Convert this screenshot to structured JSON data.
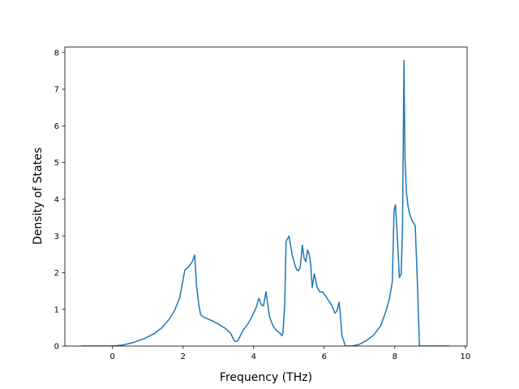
{
  "chart_data": {
    "type": "line",
    "title": "",
    "xlabel": "Frequency (THz)",
    "ylabel": "Density of States",
    "xlim": [
      -1.35,
      10.05
    ],
    "ylim": [
      0,
      8.15
    ],
    "xticks": [
      0,
      2,
      4,
      6,
      8,
      10
    ],
    "yticks": [
      0,
      1,
      2,
      3,
      4,
      5,
      6,
      7,
      8
    ],
    "grid": false,
    "legend": "none",
    "line_color": "#1f77b4",
    "series": [
      {
        "x": [
          -0.88,
          -0.4,
          0.0,
          0.3,
          0.6,
          0.9,
          1.2,
          1.4,
          1.6,
          1.75,
          1.9,
          1.98,
          2.05,
          2.15,
          2.25,
          2.3,
          2.33,
          2.38,
          2.45,
          2.5,
          2.6,
          2.8,
          3.0,
          3.2,
          3.35,
          3.42,
          3.48,
          3.55,
          3.7,
          3.85,
          3.95,
          4.0,
          4.07,
          4.15,
          4.22,
          4.28,
          4.35,
          4.45,
          4.55,
          4.65,
          4.75,
          4.8,
          4.83,
          4.88,
          4.92,
          5.0,
          5.1,
          5.18,
          5.22,
          5.27,
          5.32,
          5.38,
          5.43,
          5.48,
          5.53,
          5.58,
          5.62,
          5.66,
          5.72,
          5.8,
          5.88,
          5.95,
          6.05,
          6.15,
          6.22,
          6.3,
          6.36,
          6.42,
          6.46,
          6.5,
          6.6,
          6.8,
          7.0,
          7.2,
          7.4,
          7.6,
          7.75,
          7.85,
          7.93,
          7.98,
          8.02,
          8.08,
          8.13,
          8.18,
          8.22,
          8.26,
          8.29,
          8.33,
          8.37,
          8.42,
          8.5,
          8.58,
          8.65,
          8.7,
          8.8,
          9.0,
          9.3,
          9.55
        ],
        "y": [
          0.0,
          0.0,
          0.0,
          0.03,
          0.1,
          0.2,
          0.35,
          0.5,
          0.72,
          0.95,
          1.3,
          1.7,
          2.07,
          2.15,
          2.28,
          2.4,
          2.48,
          1.65,
          1.1,
          0.85,
          0.78,
          0.7,
          0.6,
          0.48,
          0.35,
          0.2,
          0.12,
          0.14,
          0.43,
          0.62,
          0.8,
          0.9,
          1.05,
          1.3,
          1.12,
          1.1,
          1.48,
          0.8,
          0.55,
          0.42,
          0.35,
          0.28,
          0.35,
          1.1,
          2.85,
          3.0,
          2.45,
          2.18,
          2.08,
          2.05,
          2.15,
          2.75,
          2.4,
          2.3,
          2.62,
          2.48,
          2.2,
          1.6,
          1.97,
          1.6,
          1.47,
          1.48,
          1.35,
          1.2,
          1.1,
          0.9,
          0.95,
          1.2,
          0.85,
          0.3,
          0.0,
          0.0,
          0.05,
          0.15,
          0.3,
          0.55,
          0.95,
          1.3,
          1.75,
          3.7,
          3.85,
          2.85,
          1.87,
          1.95,
          3.2,
          7.78,
          5.1,
          4.2,
          3.85,
          3.6,
          3.4,
          3.28,
          1.5,
          0.0,
          0.0,
          0.0,
          0.0,
          0.0
        ]
      }
    ]
  }
}
